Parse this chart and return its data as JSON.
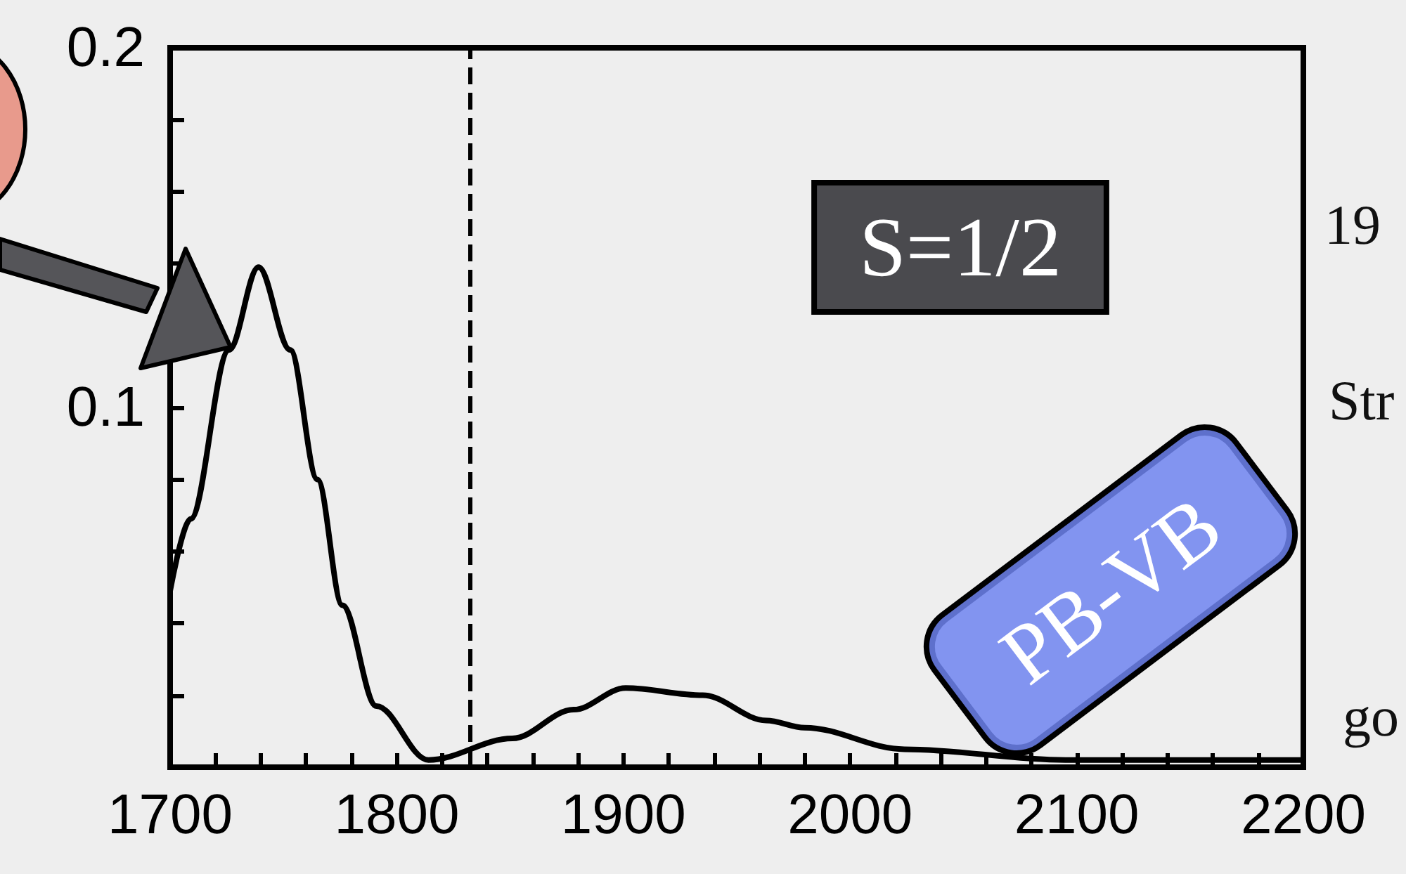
{
  "chart_data": {
    "type": "line",
    "x": [
      1700,
      1709,
      1726,
      1739,
      1753,
      1765,
      1776,
      1791,
      1814,
      1851,
      1878,
      1901,
      1935,
      1963,
      1980,
      2024,
      2095,
      2200
    ],
    "series": [
      {
        "color": "#000000",
        "values": [
          0.049,
          0.069,
          0.116,
          0.139,
          0.116,
          0.08,
          0.045,
          0.017,
          0.002,
          0.008,
          0.016,
          0.022,
          0.02,
          0.013,
          0.011,
          0.005,
          0.002,
          0.002
        ]
      }
    ],
    "xlim": [
      1700,
      2200
    ],
    "xticks": [
      1700,
      {
        "value": 1720,
        "label": null
      },
      {
        "value": 1740,
        "label": null
      },
      {
        "value": 1760,
        "label": null
      },
      {
        "value": 1780,
        "label": null
      },
      1800,
      {
        "value": 1820,
        "label": null
      },
      {
        "value": 1840,
        "label": null
      },
      {
        "value": 1860,
        "label": null
      },
      {
        "value": 1880,
        "label": null
      },
      1900,
      {
        "value": 1920,
        "label": null
      },
      {
        "value": 1940,
        "label": null
      },
      {
        "value": 1960,
        "label": null
      },
      {
        "value": 1980,
        "label": null
      },
      2000,
      {
        "value": 2020,
        "label": null
      },
      {
        "value": 2040,
        "label": null
      },
      {
        "value": 2060,
        "label": null
      },
      {
        "value": 2080,
        "label": null
      },
      2100,
      {
        "value": 2120,
        "label": null
      },
      {
        "value": 2140,
        "label": null
      },
      {
        "value": 2160,
        "label": null
      },
      {
        "value": 2180,
        "label": null
      },
      2200
    ],
    "ylim": [
      0,
      0.2
    ],
    "yticks": [
      {
        "value": 0.02,
        "label": null
      },
      {
        "value": 0.04,
        "label": null
      },
      {
        "value": 0.06,
        "label": null
      },
      {
        "value": 0.08,
        "label": null
      },
      {
        "value": 0.1,
        "label": "0.1"
      },
      {
        "value": 0.12,
        "label": null
      },
      {
        "value": 0.14,
        "label": null
      },
      {
        "value": 0.16,
        "label": null
      },
      {
        "value": 0.18,
        "label": null
      },
      {
        "value": 0.2,
        "label": "0.2"
      }
    ],
    "ref_lines": [
      {
        "axis": "x",
        "value": 1832,
        "line_style": "dashed",
        "color": "#000000"
      }
    ],
    "annotations": [
      "S=1/2",
      "PB-VB",
      "19",
      "Str",
      "go"
    ],
    "marker": "none",
    "line_style": "solid"
  }
}
